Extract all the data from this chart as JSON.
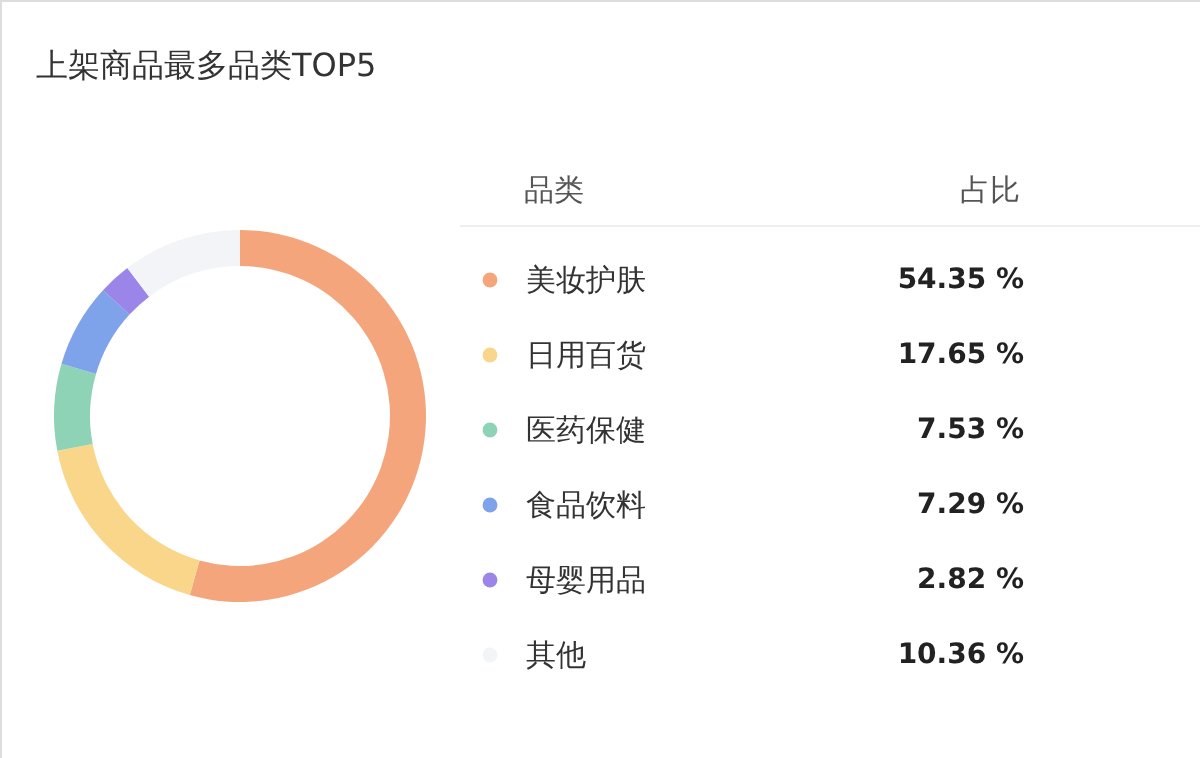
{
  "chart_data": {
    "type": "donut",
    "title": "上架商品最多品类TOP5",
    "legend_title": "品类",
    "annotations": [
      "占比"
    ],
    "legend": "right",
    "categories": [
      "美妆护肤",
      "日用百货",
      "医药保健",
      "食品饮料",
      "母婴用品",
      "其他"
    ],
    "values": [
      54.35,
      17.65,
      7.53,
      7.29,
      2.82,
      10.36
    ],
    "colors": [
      "#f4a57c",
      "#f9d68a",
      "#8fd3b7",
      "#7fa3ea",
      "#9b85e8",
      "#f2f4f8"
    ],
    "value_labels": [
      "54.35 %",
      "17.65 %",
      "7.53 %",
      "7.29 %",
      "2.82 %",
      "10.36 %"
    ]
  }
}
